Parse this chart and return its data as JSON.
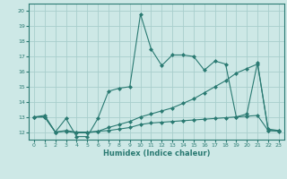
{
  "xlabel": "Humidex (Indice chaleur)",
  "background_color": "#cde8e6",
  "grid_color": "#a8cecc",
  "line_color": "#2a7a72",
  "xlim": [
    -0.5,
    23.5
  ],
  "ylim": [
    11.5,
    20.5
  ],
  "xticks": [
    0,
    1,
    2,
    3,
    4,
    5,
    6,
    7,
    8,
    9,
    10,
    11,
    12,
    13,
    14,
    15,
    16,
    17,
    18,
    19,
    20,
    21,
    22,
    23
  ],
  "yticks": [
    12,
    13,
    14,
    15,
    16,
    17,
    18,
    19,
    20
  ],
  "series": {
    "line1_x": [
      0,
      1,
      2,
      3,
      4,
      5,
      6,
      7,
      8,
      9,
      10,
      11,
      12,
      13,
      14,
      15,
      16,
      17,
      18,
      19,
      20,
      21,
      22,
      23
    ],
    "line1_y": [
      13.0,
      13.1,
      12.0,
      12.9,
      11.7,
      11.7,
      12.9,
      14.7,
      14.9,
      15.0,
      19.8,
      17.5,
      16.4,
      17.1,
      17.1,
      17.0,
      16.1,
      16.7,
      16.5,
      13.0,
      13.2,
      16.6,
      12.1,
      12.1
    ],
    "line2_x": [
      0,
      1,
      2,
      3,
      4,
      5,
      6,
      7,
      8,
      9,
      10,
      11,
      12,
      13,
      14,
      15,
      16,
      17,
      18,
      19,
      20,
      21,
      22,
      23
    ],
    "line2_y": [
      13.0,
      13.0,
      12.0,
      12.05,
      11.95,
      11.95,
      12.05,
      12.1,
      12.2,
      12.3,
      12.5,
      12.6,
      12.65,
      12.7,
      12.75,
      12.8,
      12.85,
      12.9,
      12.95,
      13.0,
      13.05,
      13.1,
      12.1,
      12.05
    ],
    "line3_x": [
      0,
      1,
      2,
      3,
      4,
      5,
      6,
      7,
      8,
      9,
      10,
      11,
      12,
      13,
      14,
      15,
      16,
      17,
      18,
      19,
      20,
      21,
      22,
      23
    ],
    "line3_y": [
      13.0,
      13.0,
      12.0,
      12.1,
      12.0,
      12.0,
      12.05,
      12.3,
      12.5,
      12.7,
      13.0,
      13.2,
      13.4,
      13.6,
      13.9,
      14.2,
      14.6,
      15.0,
      15.4,
      15.9,
      16.2,
      16.5,
      12.2,
      12.1
    ]
  }
}
